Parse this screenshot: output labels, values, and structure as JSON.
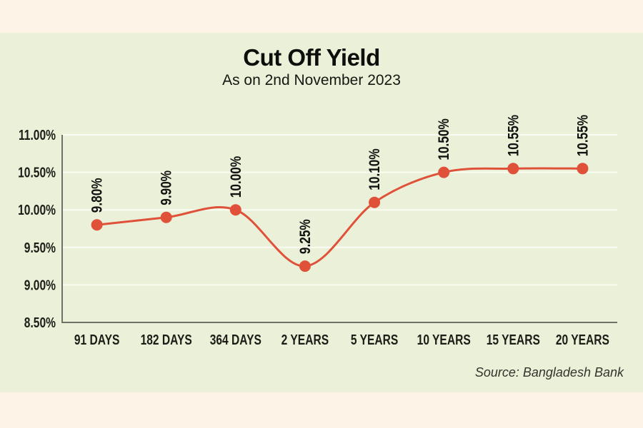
{
  "page": {
    "outer_background": "#fdf3e7",
    "panel_background": "#ebf1d9"
  },
  "header": {
    "title": "Cut Off Yield",
    "subtitle": "As on 2nd November 2023"
  },
  "footer": {
    "source": "Source: Bangladesh Bank"
  },
  "chart_data": {
    "type": "line",
    "title": "Cut Off Yield",
    "subtitle": "As on 2nd November 2023",
    "source": "Source: Bangladesh Bank",
    "categories": [
      "91 DAYS",
      "182 DAYS",
      "364 DAYS",
      "2 YEARS",
      "5 YEARS",
      "10 YEARS",
      "15 YEARS",
      "20 YEARS"
    ],
    "values": [
      9.8,
      9.9,
      10.0,
      9.25,
      10.1,
      10.5,
      10.55,
      10.55
    ],
    "point_labels": [
      "9.80%",
      "9.90%",
      "10.00%",
      "9.25%",
      "10.10%",
      "10.50%",
      "10.55%",
      "10.55%"
    ],
    "xlabel": "",
    "ylabel": "",
    "ylim": [
      8.5,
      11.0
    ],
    "ytick_step": 0.5,
    "ytick_labels": [
      "8.50%",
      "9.00%",
      "9.50%",
      "10.00%",
      "10.50%",
      "11.00%"
    ],
    "grid": true,
    "legend": "none",
    "line_color": "#e0513a",
    "marker_color": "#e0513a",
    "axis_color": "#6f7266",
    "grid_color": "#fafcf1",
    "text_color": "#1d1d18"
  }
}
